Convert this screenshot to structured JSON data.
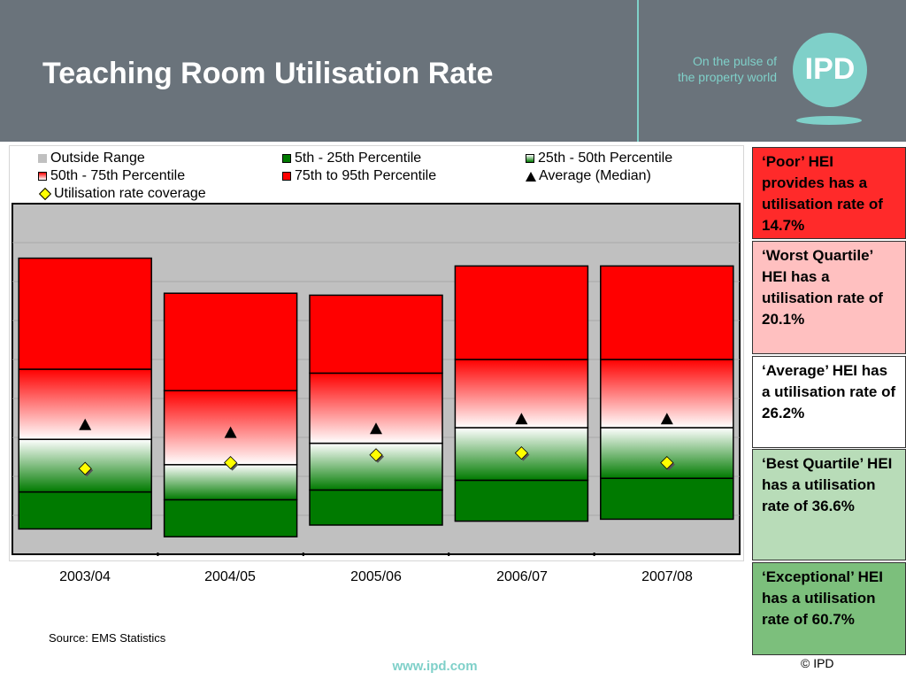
{
  "header": {
    "title": "Teaching Room Utilisation Rate",
    "tagline_line1": "On the pulse of",
    "tagline_line2": "the property world",
    "logo_text": "IPD"
  },
  "colors": {
    "header_bg": "#6a737b",
    "accent_teal": "#7fd0c9",
    "red": "#ff0000",
    "green": "#007a00",
    "pink": "#ffc0c0",
    "white": "#ffffff",
    "light_green": "#b8dcb8",
    "mid_green": "#7cbf7c",
    "plot_bg": "#c0c0c0"
  },
  "legend": {
    "outside_range": "Outside Range",
    "p5_25": "5th - 25th Percentile",
    "p25_50": "25th - 50th Percentile",
    "p50_75": "50th - 75th Percentile",
    "p75_95": "75th to 95th Percentile",
    "average": "Average (Median)",
    "coverage": "Utilisation rate coverage"
  },
  "chart_data": {
    "type": "bar",
    "chart_subtype": "stacked percentile range (floating box)",
    "categories": [
      "2003/04",
      "2004/05",
      "2005/06",
      "2006/07",
      "2007/08"
    ],
    "ylim": [
      0,
      90
    ],
    "grid": true,
    "yticks_labeled": false,
    "legend_position": "top",
    "series": [
      {
        "name": "5th - 25th Percentile",
        "low": [
          6.5,
          4.5,
          7.5,
          8.5,
          9.0
        ],
        "high": [
          16.0,
          14.0,
          16.5,
          19.0,
          19.5
        ]
      },
      {
        "name": "25th - 50th Percentile",
        "low": [
          16.0,
          14.0,
          16.5,
          19.0,
          19.5
        ],
        "high": [
          29.5,
          23.0,
          28.5,
          32.5,
          32.5
        ]
      },
      {
        "name": "50th - 75th Percentile",
        "low": [
          29.5,
          23.0,
          28.5,
          32.5,
          32.5
        ],
        "high": [
          47.5,
          42.0,
          46.5,
          50.0,
          50.0
        ]
      },
      {
        "name": "75th to 95th Percentile",
        "low": [
          47.5,
          42.0,
          46.5,
          50.0,
          50.0
        ],
        "high": [
          76.0,
          67.0,
          66.5,
          74.0,
          74.0
        ]
      },
      {
        "name": "Average (Median)",
        "values": [
          33.0,
          31.0,
          32.0,
          34.5,
          34.5
        ]
      },
      {
        "name": "Utilisation rate coverage",
        "values": [
          22.0,
          23.5,
          25.5,
          26.0,
          23.5
        ]
      }
    ]
  },
  "source": "Source: EMS Statistics",
  "website": "www.ipd.com",
  "copyright": "© IPD",
  "side_boxes": [
    {
      "text": "‘Poor’ HEI provides has a utilisation rate of 14.7%",
      "color": "#ff2a2a"
    },
    {
      "text": "‘Worst Quartile’ HEI has a utilisation rate of 20.1%",
      "color": "#ffc0c0"
    },
    {
      "text": "‘Average’ HEI has a utilisation rate of 26.2%",
      "color": "#ffffff"
    },
    {
      "text": "‘Best Quartile’ HEI has a utilisation rate of 36.6%",
      "color": "#b8dcb8"
    },
    {
      "text": "‘Exceptional’ HEI has a utilisation rate of 60.7%",
      "color": "#7cbf7c"
    }
  ]
}
